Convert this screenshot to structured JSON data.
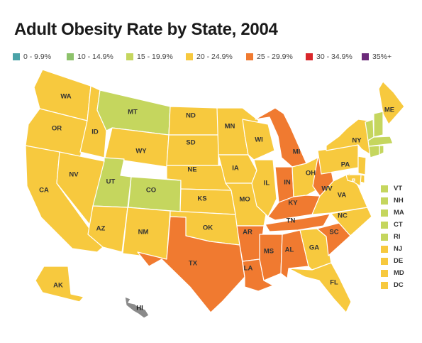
{
  "title": "Adult Obesity Rate by State, 2004",
  "legend": [
    {
      "label": "0 - 9.9%",
      "color": "#4ba3a8"
    },
    {
      "label": "10 - 14.9%",
      "color": "#8dc26b"
    },
    {
      "label": "15 - 19.9%",
      "color": "#c5d65e"
    },
    {
      "label": "20 - 24.9%",
      "color": "#f7c93e"
    },
    {
      "label": "25 - 29.9%",
      "color": "#f07a30"
    },
    {
      "label": "30 - 34.9%",
      "color": "#d9262a"
    },
    {
      "label": "35%+",
      "color": "#6b2a7a"
    }
  ],
  "states": {
    "WA": {
      "label": "WA",
      "bin": 3
    },
    "OR": {
      "label": "OR",
      "bin": 3
    },
    "CA": {
      "label": "CA",
      "bin": 3
    },
    "ID": {
      "label": "ID",
      "bin": 3
    },
    "NV": {
      "label": "NV",
      "bin": 3
    },
    "MT": {
      "label": "MT",
      "bin": 2
    },
    "WY": {
      "label": "WY",
      "bin": 3
    },
    "UT": {
      "label": "UT",
      "bin": 2
    },
    "AZ": {
      "label": "AZ",
      "bin": 3
    },
    "CO": {
      "label": "CO",
      "bin": 2
    },
    "NM": {
      "label": "NM",
      "bin": 3
    },
    "ND": {
      "label": "ND",
      "bin": 3
    },
    "SD": {
      "label": "SD",
      "bin": 3
    },
    "NE": {
      "label": "NE",
      "bin": 3
    },
    "KS": {
      "label": "KS",
      "bin": 3
    },
    "OK": {
      "label": "OK",
      "bin": 3
    },
    "TX": {
      "label": "TX",
      "bin": 4
    },
    "MN": {
      "label": "MN",
      "bin": 3
    },
    "IA": {
      "label": "IA",
      "bin": 3
    },
    "MO": {
      "label": "MO",
      "bin": 3
    },
    "AR": {
      "label": "AR",
      "bin": 4
    },
    "LA": {
      "label": "LA",
      "bin": 4
    },
    "WI": {
      "label": "WI",
      "bin": 3
    },
    "IL": {
      "label": "IL",
      "bin": 3
    },
    "MI": {
      "label": "MI",
      "bin": 4
    },
    "IN": {
      "label": "IN",
      "bin": 4
    },
    "OH": {
      "label": "OH",
      "bin": 3
    },
    "KY": {
      "label": "KY",
      "bin": 4
    },
    "TN": {
      "label": "TN",
      "bin": 4
    },
    "MS": {
      "label": "MS",
      "bin": 4
    },
    "AL": {
      "label": "AL",
      "bin": 4
    },
    "GA": {
      "label": "GA",
      "bin": 3
    },
    "FL": {
      "label": "FL",
      "bin": 3
    },
    "SC": {
      "label": "SC",
      "bin": 4
    },
    "NC": {
      "label": "NC",
      "bin": 3
    },
    "VA": {
      "label": "VA",
      "bin": 3
    },
    "WV": {
      "label": "WV",
      "bin": 4
    },
    "PA": {
      "label": "PA",
      "bin": 3
    },
    "NY": {
      "label": "NY",
      "bin": 3
    },
    "ME": {
      "label": "ME",
      "bin": 3
    },
    "VT": {
      "label": "VT",
      "bin": 2
    },
    "NH": {
      "label": "NH",
      "bin": 2
    },
    "MA": {
      "label": "MA",
      "bin": 2
    },
    "CT": {
      "label": "CT",
      "bin": 2
    },
    "RI": {
      "label": "RI",
      "bin": 2
    },
    "NJ": {
      "label": "NJ",
      "bin": 3
    },
    "DE": {
      "label": "DE",
      "bin": 3
    },
    "MD": {
      "label": "MD",
      "bin": 3
    },
    "DC": {
      "label": "DC",
      "bin": 3
    },
    "AK": {
      "label": "AK",
      "bin": 3
    },
    "HI": {
      "label": "HI",
      "bin": null
    }
  },
  "small_states": [
    "VT",
    "NH",
    "MA",
    "CT",
    "RI",
    "NJ",
    "DE",
    "MD",
    "DC"
  ],
  "no_data_color": "#8a8a8a"
}
